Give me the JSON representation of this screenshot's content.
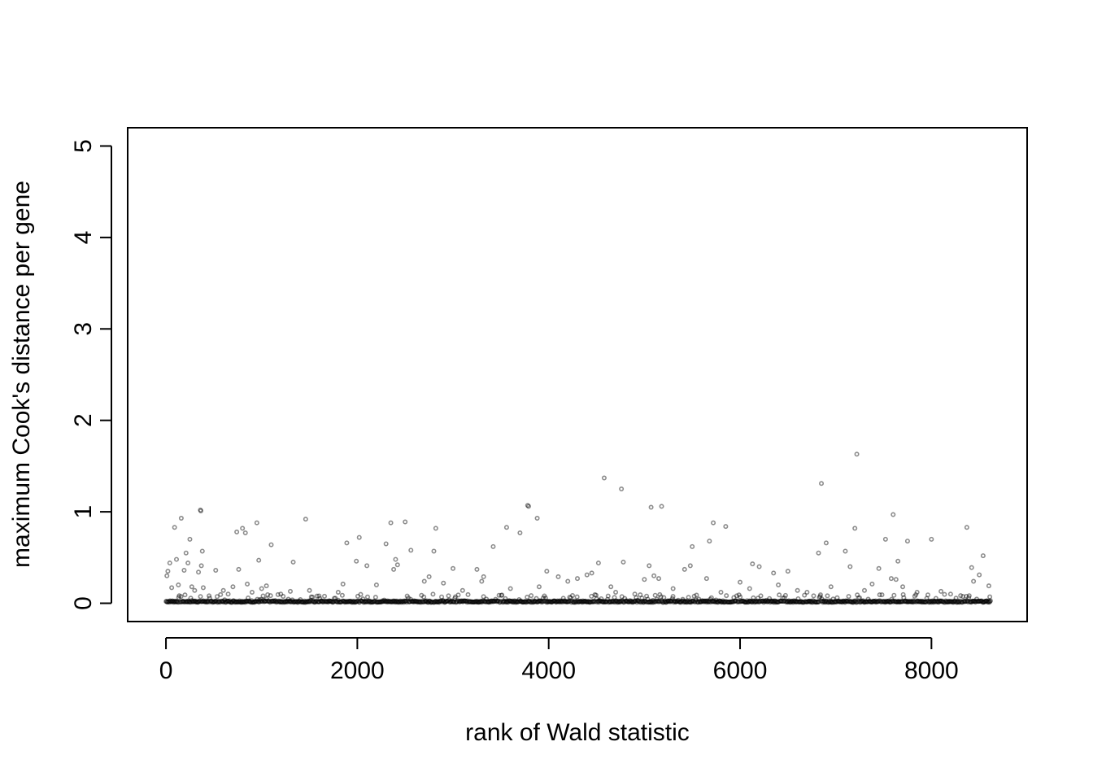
{
  "chart_data": {
    "type": "scatter",
    "title": "",
    "xlabel": "rank of Wald statistic",
    "ylabel": "maximum Cook's distance per gene",
    "xlim": [
      -400,
      9000
    ],
    "ylim": [
      -0.2,
      5.2
    ],
    "x_ticks": [
      0,
      2000,
      4000,
      6000,
      8000
    ],
    "x_tick_labels": [
      "0",
      "2000",
      "4000",
      "6000",
      "8000"
    ],
    "y_ticks": [
      0,
      1,
      2,
      3,
      4,
      5
    ],
    "y_tick_labels": [
      "0",
      "1",
      "2",
      "3",
      "4",
      "5"
    ],
    "grid": false,
    "legend": "none",
    "n_points": 8620,
    "baseline_value": 0.01,
    "points": [
      [
        10,
        0.3
      ],
      [
        20,
        0.35
      ],
      [
        40,
        0.44
      ],
      [
        60,
        0.17
      ],
      [
        90,
        0.83
      ],
      [
        110,
        0.48
      ],
      [
        130,
        0.2
      ],
      [
        160,
        0.93
      ],
      [
        190,
        0.36
      ],
      [
        210,
        0.55
      ],
      [
        230,
        0.44
      ],
      [
        250,
        0.7
      ],
      [
        270,
        0.18
      ],
      [
        300,
        0.14
      ],
      [
        340,
        0.34
      ],
      [
        360,
        1.02
      ],
      [
        365,
        1.01
      ],
      [
        370,
        0.41
      ],
      [
        380,
        0.57
      ],
      [
        390,
        0.17
      ],
      [
        520,
        0.36
      ],
      [
        600,
        0.14
      ],
      [
        650,
        0.1
      ],
      [
        700,
        0.18
      ],
      [
        740,
        0.78
      ],
      [
        760,
        0.37
      ],
      [
        800,
        0.82
      ],
      [
        830,
        0.77
      ],
      [
        850,
        0.21
      ],
      [
        900,
        0.12
      ],
      [
        950,
        0.88
      ],
      [
        970,
        0.47
      ],
      [
        1000,
        0.16
      ],
      [
        1050,
        0.19
      ],
      [
        1100,
        0.64
      ],
      [
        1200,
        0.1
      ],
      [
        1300,
        0.13
      ],
      [
        1330,
        0.45
      ],
      [
        1460,
        0.92
      ],
      [
        1500,
        0.14
      ],
      [
        1600,
        0.08
      ],
      [
        1800,
        0.12
      ],
      [
        1850,
        0.21
      ],
      [
        1890,
        0.66
      ],
      [
        1990,
        0.46
      ],
      [
        2020,
        0.72
      ],
      [
        2100,
        0.41
      ],
      [
        2200,
        0.2
      ],
      [
        2300,
        0.65
      ],
      [
        2350,
        0.88
      ],
      [
        2380,
        0.37
      ],
      [
        2400,
        0.48
      ],
      [
        2420,
        0.42
      ],
      [
        2500,
        0.89
      ],
      [
        2560,
        0.58
      ],
      [
        2700,
        0.24
      ],
      [
        2750,
        0.29
      ],
      [
        2800,
        0.57
      ],
      [
        2820,
        0.82
      ],
      [
        2900,
        0.22
      ],
      [
        3000,
        0.38
      ],
      [
        3100,
        0.14
      ],
      [
        3250,
        0.37
      ],
      [
        3300,
        0.24
      ],
      [
        3320,
        0.29
      ],
      [
        3420,
        0.62
      ],
      [
        3560,
        0.83
      ],
      [
        3600,
        0.16
      ],
      [
        3700,
        0.77
      ],
      [
        3780,
        1.07
      ],
      [
        3790,
        1.06
      ],
      [
        3880,
        0.93
      ],
      [
        3900,
        0.18
      ],
      [
        3980,
        0.35
      ],
      [
        4100,
        0.29
      ],
      [
        4200,
        0.24
      ],
      [
        4300,
        0.27
      ],
      [
        4400,
        0.31
      ],
      [
        4450,
        0.33
      ],
      [
        4520,
        0.44
      ],
      [
        4580,
        1.37
      ],
      [
        4650,
        0.18
      ],
      [
        4700,
        0.12
      ],
      [
        4760,
        1.25
      ],
      [
        4780,
        0.45
      ],
      [
        4900,
        0.1
      ],
      [
        5000,
        0.26
      ],
      [
        5050,
        0.41
      ],
      [
        5070,
        1.05
      ],
      [
        5100,
        0.3
      ],
      [
        5150,
        0.27
      ],
      [
        5180,
        1.06
      ],
      [
        5300,
        0.16
      ],
      [
        5420,
        0.37
      ],
      [
        5480,
        0.41
      ],
      [
        5500,
        0.62
      ],
      [
        5650,
        0.27
      ],
      [
        5680,
        0.68
      ],
      [
        5720,
        0.88
      ],
      [
        5800,
        0.12
      ],
      [
        5850,
        0.84
      ],
      [
        6000,
        0.23
      ],
      [
        6100,
        0.16
      ],
      [
        6130,
        0.43
      ],
      [
        6200,
        0.4
      ],
      [
        6350,
        0.33
      ],
      [
        6400,
        0.2
      ],
      [
        6500,
        0.35
      ],
      [
        6600,
        0.14
      ],
      [
        6700,
        0.12
      ],
      [
        6820,
        0.55
      ],
      [
        6850,
        1.31
      ],
      [
        6900,
        0.66
      ],
      [
        6950,
        0.18
      ],
      [
        7100,
        0.57
      ],
      [
        7150,
        0.4
      ],
      [
        7200,
        0.82
      ],
      [
        7220,
        1.63
      ],
      [
        7300,
        0.14
      ],
      [
        7380,
        0.21
      ],
      [
        7450,
        0.38
      ],
      [
        7520,
        0.7
      ],
      [
        7580,
        0.27
      ],
      [
        7600,
        0.97
      ],
      [
        7630,
        0.26
      ],
      [
        7650,
        0.46
      ],
      [
        7700,
        0.18
      ],
      [
        7750,
        0.68
      ],
      [
        7850,
        0.12
      ],
      [
        8000,
        0.7
      ],
      [
        8100,
        0.13
      ],
      [
        8200,
        0.1
      ],
      [
        8370,
        0.83
      ],
      [
        8420,
        0.39
      ],
      [
        8440,
        0.24
      ],
      [
        8500,
        0.31
      ],
      [
        8540,
        0.52
      ],
      [
        8600,
        0.19
      ],
      [
        8610,
        0.07
      ]
    ]
  }
}
